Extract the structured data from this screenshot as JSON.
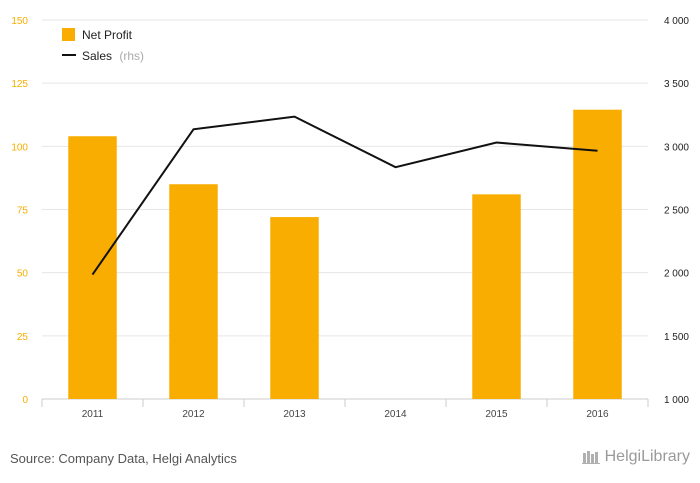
{
  "chart_data": {
    "type": "bar+line",
    "categories": [
      "2011",
      "2012",
      "2013",
      "2014",
      "2015",
      "2016"
    ],
    "series": [
      {
        "name": "Net Profit",
        "axis": "left",
        "kind": "bar",
        "color": "#f9ad00",
        "values": [
          104,
          85,
          72,
          null,
          81,
          114.5
        ]
      },
      {
        "name": "Sales",
        "suffix": "(rhs)",
        "axis": "right",
        "kind": "line",
        "color": "#111111",
        "values": [
          1985,
          3135,
          3235,
          2835,
          3030,
          2965
        ]
      }
    ],
    "left_axis": {
      "min": 0,
      "max": 150,
      "ticks": [
        "0",
        "25",
        "50",
        "75",
        "100",
        "125",
        "150"
      ],
      "tick_color": "#f9ad00"
    },
    "right_axis": {
      "min": 1000,
      "max": 4000,
      "ticks": [
        "1 000",
        "1 500",
        "2 000",
        "2 500",
        "3 000",
        "3 500",
        "4 000"
      ],
      "tick_color": "#222222"
    },
    "legend_position": "top-left",
    "grid": true
  },
  "footer": {
    "source": "Source: Company Data, Helgi Analytics",
    "logo_text": "HelgiLibrary"
  }
}
